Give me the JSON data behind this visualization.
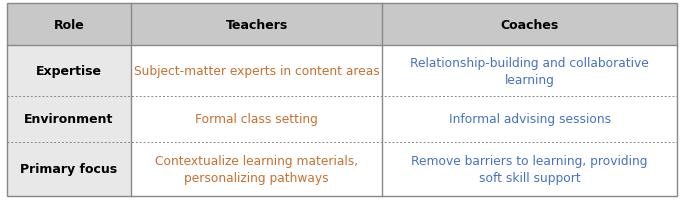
{
  "figsize": [
    6.84,
    2.01
  ],
  "dpi": 100,
  "header_bg": "#c8c8c8",
  "role_col_bg": "#e8e8e8",
  "row_bg": "#ffffff",
  "header_text_color": "#000000",
  "role_text_color": "#000000",
  "data_text_color_teachers": "#c87030",
  "data_text_color_coaches": "#4472c4",
  "border_color": "#888888",
  "dotted_color": "#888888",
  "headers": [
    "Role",
    "Teachers",
    "Coaches"
  ],
  "rows": [
    {
      "role": "Expertise",
      "teachers": "Subject-matter experts in content areas",
      "coaches": "Relationship-building and collaborative\nlearning"
    },
    {
      "role": "Environment",
      "teachers": "Formal class setting",
      "coaches": "Informal advising sessions"
    },
    {
      "role": "Primary focus",
      "teachers": "Contextualize learning materials,\npersonalizing pathways",
      "coaches": "Remove barriers to learning, providing\nsoft skill support"
    }
  ],
  "header_fontsize": 9.0,
  "role_fontsize": 9.0,
  "data_fontsize": 8.8
}
